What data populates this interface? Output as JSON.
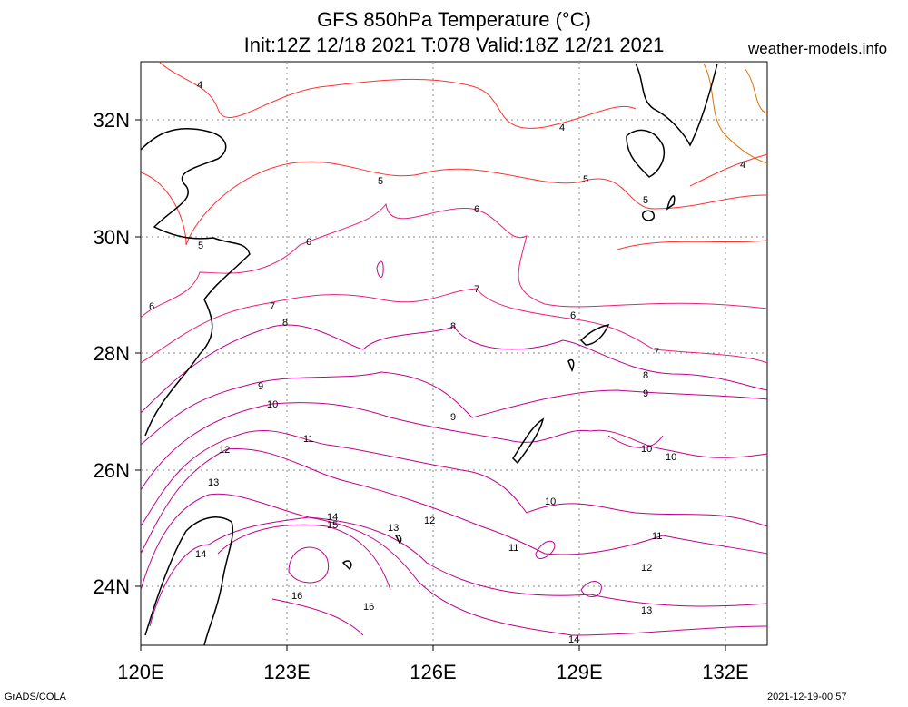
{
  "header": {
    "title_line1": "GFS 850hPa Temperature (°C)",
    "title_line2": "Init:12Z 12/18 2021 T:078 Valid:18Z 12/21 2021",
    "credit": "weather-models.info"
  },
  "footer": {
    "left": "GrADS/COLA",
    "right": "2021-12-19-00:57"
  },
  "axes": {
    "x_ticks": [
      "120E",
      "123E",
      "126E",
      "129E",
      "132E"
    ],
    "y_ticks": [
      "32N",
      "30N",
      "28N",
      "26N",
      "24N"
    ]
  },
  "contour_labels": [
    "4",
    "5",
    "6",
    "7",
    "8",
    "9",
    "10",
    "11",
    "12",
    "13",
    "14",
    "15",
    "16"
  ],
  "colors": {
    "cold": "#ff3030",
    "mid": "#e8207a",
    "warm": "#c0008c",
    "orange": "#e07000",
    "grid": "#888888",
    "coast": "#000000"
  }
}
